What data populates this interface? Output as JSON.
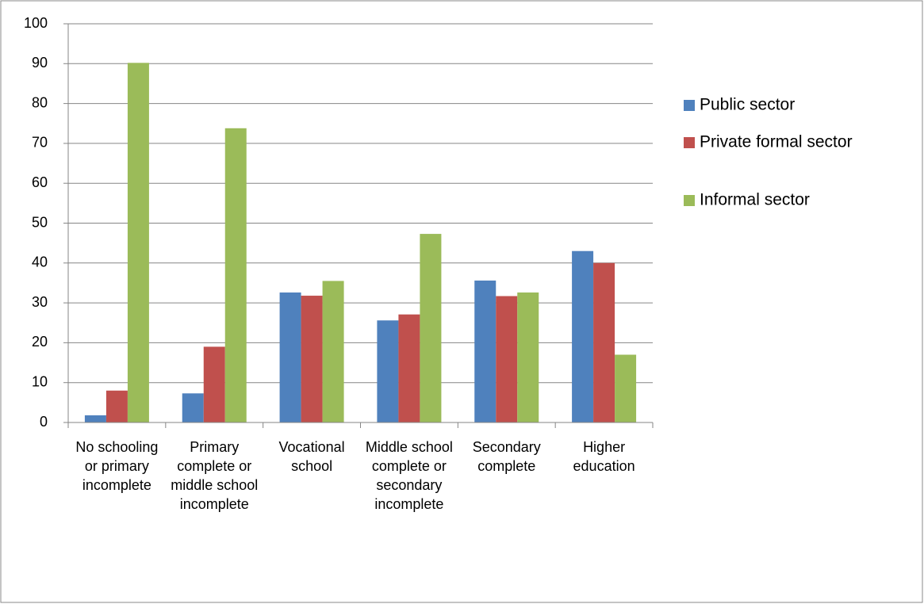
{
  "chart_data": {
    "type": "bar",
    "categories": [
      "No schooling or primary incomplete",
      "Primary complete or middle school incomplete",
      "Vocational school",
      "Middle school complete or secondary incomplete",
      "Secondary complete",
      "Higher education"
    ],
    "series": [
      {
        "name": "Public sector",
        "color": "#4f81bd",
        "values": [
          1.8,
          7.3,
          32.6,
          25.6,
          35.6,
          43
        ]
      },
      {
        "name": "Private formal sector",
        "color": "#c0504d",
        "values": [
          8,
          19,
          31.8,
          27.1,
          31.7,
          40
        ]
      },
      {
        "name": "Informal sector",
        "color": "#9bbb59",
        "values": [
          90.2,
          73.8,
          35.5,
          47.3,
          32.6,
          17
        ]
      }
    ],
    "ylim": [
      0,
      100
    ],
    "yticks": [
      0,
      10,
      20,
      30,
      40,
      50,
      60,
      70,
      80,
      90,
      100
    ],
    "grid": true,
    "legend": "right"
  }
}
